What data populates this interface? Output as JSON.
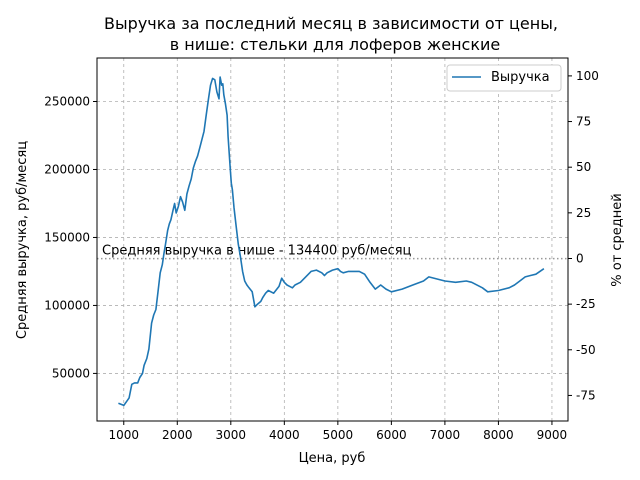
{
  "chart_data": {
    "type": "line",
    "title_line1": "Выручка за последний месяц в зависимости от цены,",
    "title_line2": "в нише: стельки для лоферов женские",
    "xlabel": "Цена, руб",
    "ylabel": "Средняя выручка, руб/месяц",
    "y2label": "% от средней",
    "xlim": [
      500,
      9300
    ],
    "ylim": [
      15000,
      282000
    ],
    "y2lim": [
      -89.0,
      109.8
    ],
    "x_ticks": [
      1000,
      2000,
      3000,
      4000,
      5000,
      6000,
      7000,
      8000,
      9000
    ],
    "y_ticks": [
      50000,
      100000,
      150000,
      200000,
      250000
    ],
    "y2_ticks": [
      -75,
      -50,
      -25,
      0,
      25,
      50,
      75,
      100
    ],
    "grid": true,
    "legend_position": "top-right",
    "average": {
      "value": 134400,
      "label": "Средняя выручка в нише - 134400 руб/месяц"
    },
    "series": [
      {
        "name": "Выручка",
        "color": "#1f77b4",
        "x": [
          900,
          1000,
          1100,
          1150,
          1200,
          1260,
          1300,
          1350,
          1380,
          1430,
          1470,
          1520,
          1560,
          1600,
          1640,
          1680,
          1720,
          1750,
          1780,
          1820,
          1850,
          1880,
          1920,
          1950,
          1980,
          2020,
          2060,
          2100,
          2140,
          2180,
          2220,
          2260,
          2300,
          2340,
          2380,
          2420,
          2460,
          2500,
          2540,
          2580,
          2620,
          2660,
          2700,
          2740,
          2780,
          2800,
          2830,
          2850,
          2870,
          2900,
          2930,
          2950,
          2970,
          2990,
          3010,
          3030,
          3060,
          3100,
          3140,
          3180,
          3220,
          3260,
          3300,
          3340,
          3400,
          3450,
          3500,
          3560,
          3600,
          3650,
          3700,
          3800,
          3900,
          3950,
          4000,
          4050,
          4100,
          4150,
          4200,
          4300,
          4400,
          4500,
          4600,
          4700,
          4750,
          4800,
          4900,
          5000,
          5050,
          5100,
          5200,
          5300,
          5400,
          5500,
          5600,
          5700,
          5800,
          5900,
          6000,
          6200,
          6400,
          6600,
          6700,
          6900,
          7000,
          7200,
          7400,
          7500,
          7700,
          7800,
          8000,
          8200,
          8300,
          8400,
          8500,
          8600,
          8700,
          8850
        ],
        "values": [
          28000,
          26500,
          32000,
          42000,
          43000,
          43000,
          47000,
          50000,
          56000,
          61000,
          68000,
          87000,
          93000,
          97000,
          110000,
          124000,
          130000,
          138000,
          145000,
          155000,
          160000,
          163000,
          170000,
          175000,
          168000,
          173000,
          180000,
          176000,
          170000,
          182000,
          188000,
          193000,
          201000,
          206000,
          210000,
          216000,
          222000,
          228000,
          240000,
          251000,
          262000,
          267000,
          266000,
          257000,
          252000,
          268000,
          262000,
          263000,
          255000,
          248000,
          240000,
          224000,
          212000,
          200000,
          190000,
          185000,
          172000,
          158000,
          145000,
          136000,
          125000,
          118000,
          115000,
          113000,
          110000,
          99000,
          101000,
          103000,
          106000,
          109000,
          111000,
          109000,
          114000,
          120000,
          117000,
          115000,
          114000,
          113000,
          115000,
          117000,
          121000,
          125000,
          126000,
          124000,
          122000,
          124000,
          126000,
          127000,
          125000,
          124000,
          125000,
          125000,
          125000,
          123000,
          117000,
          112000,
          115000,
          112000,
          110000,
          112000,
          115000,
          118000,
          121000,
          119000,
          118000,
          117000,
          118000,
          117000,
          113000,
          110000,
          111000,
          113000,
          115000,
          118000,
          121000,
          122000,
          123000,
          127000
        ]
      }
    ]
  }
}
